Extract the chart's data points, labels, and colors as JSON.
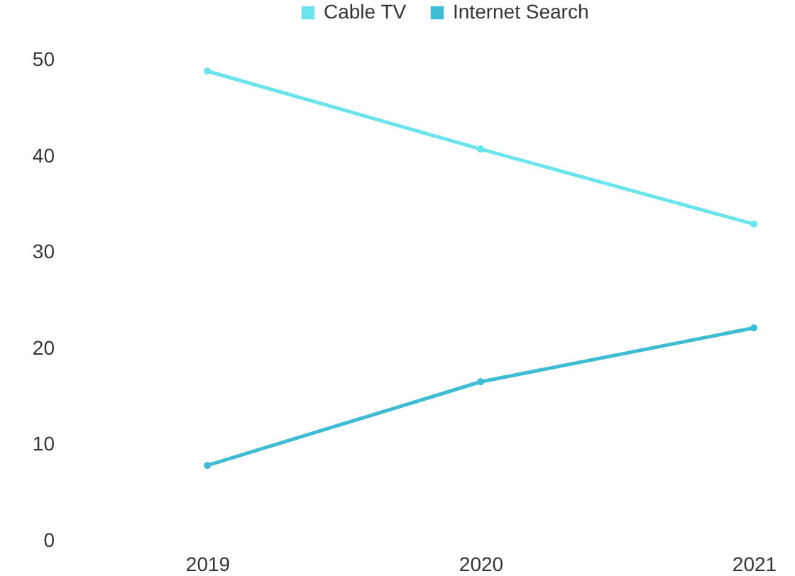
{
  "chart_data": {
    "type": "line",
    "categories": [
      "2019",
      "2020",
      "2021"
    ],
    "ylim": [
      0,
      50
    ],
    "yticks": [
      0,
      10,
      20,
      30,
      40,
      50
    ],
    "legend": "top",
    "marker": "circle",
    "grid": false,
    "series": [
      {
        "name": "Cable TV",
        "color": "#6de4ec",
        "values": [
          48.8,
          40.7,
          32.9
        ]
      },
      {
        "name": "Internet Search",
        "color": "#3fbcd4",
        "values": [
          7.8,
          16.5,
          22.1
        ]
      }
    ]
  }
}
